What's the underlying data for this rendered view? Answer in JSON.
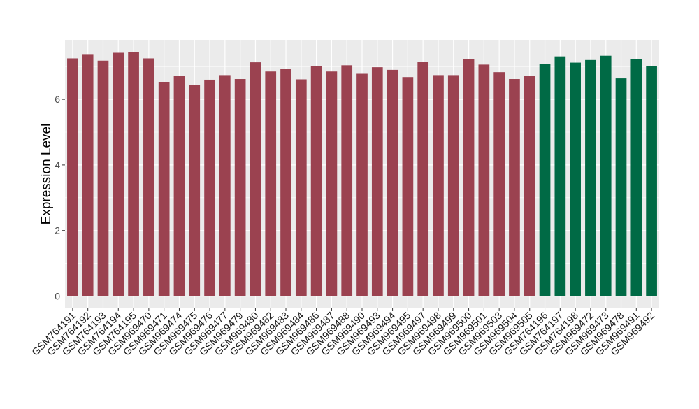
{
  "chart_data": {
    "type": "bar",
    "ylabel": "Expression Level",
    "xlabel": "",
    "ylim": [
      0,
      7.8
    ],
    "yticks": [
      0,
      2,
      4,
      6
    ],
    "grid": true,
    "legend": "none",
    "colors": {
      "group_a": "#9b4250",
      "group_b": "#006a45",
      "panel_bg": "#ebebeb",
      "grid": "#ffffff"
    },
    "categories": [
      "GSM764191",
      "GSM764192",
      "GSM764193",
      "GSM764194",
      "GSM764195",
      "GSM969470",
      "GSM969471",
      "GSM969474",
      "GSM969475",
      "GSM969476",
      "GSM969477",
      "GSM969479",
      "GSM969480",
      "GSM969482",
      "GSM969483",
      "GSM969484",
      "GSM969486",
      "GSM969487",
      "GSM969488",
      "GSM969490",
      "GSM969493",
      "GSM969494",
      "GSM969495",
      "GSM969497",
      "GSM969498",
      "GSM969499",
      "GSM969500",
      "GSM969501",
      "GSM969503",
      "GSM969504",
      "GSM969505",
      "GSM764196",
      "GSM764197",
      "GSM764198",
      "GSM969472",
      "GSM969473",
      "GSM969478",
      "GSM969491",
      "GSM969492"
    ],
    "values": [
      7.25,
      7.38,
      7.18,
      7.42,
      7.44,
      7.25,
      6.53,
      6.72,
      6.43,
      6.6,
      6.74,
      6.62,
      7.13,
      6.85,
      6.93,
      6.61,
      7.02,
      6.85,
      7.04,
      6.78,
      6.98,
      6.9,
      6.68,
      7.15,
      6.74,
      6.74,
      7.22,
      7.06,
      6.83,
      6.62,
      6.72,
      7.07,
      7.31,
      7.12,
      7.2,
      7.33,
      6.64,
      7.22,
      7.01
    ],
    "groups": [
      "a",
      "a",
      "a",
      "a",
      "a",
      "a",
      "a",
      "a",
      "a",
      "a",
      "a",
      "a",
      "a",
      "a",
      "a",
      "a",
      "a",
      "a",
      "a",
      "a",
      "a",
      "a",
      "a",
      "a",
      "a",
      "a",
      "a",
      "a",
      "a",
      "a",
      "a",
      "b",
      "b",
      "b",
      "b",
      "b",
      "b",
      "b",
      "b"
    ]
  }
}
